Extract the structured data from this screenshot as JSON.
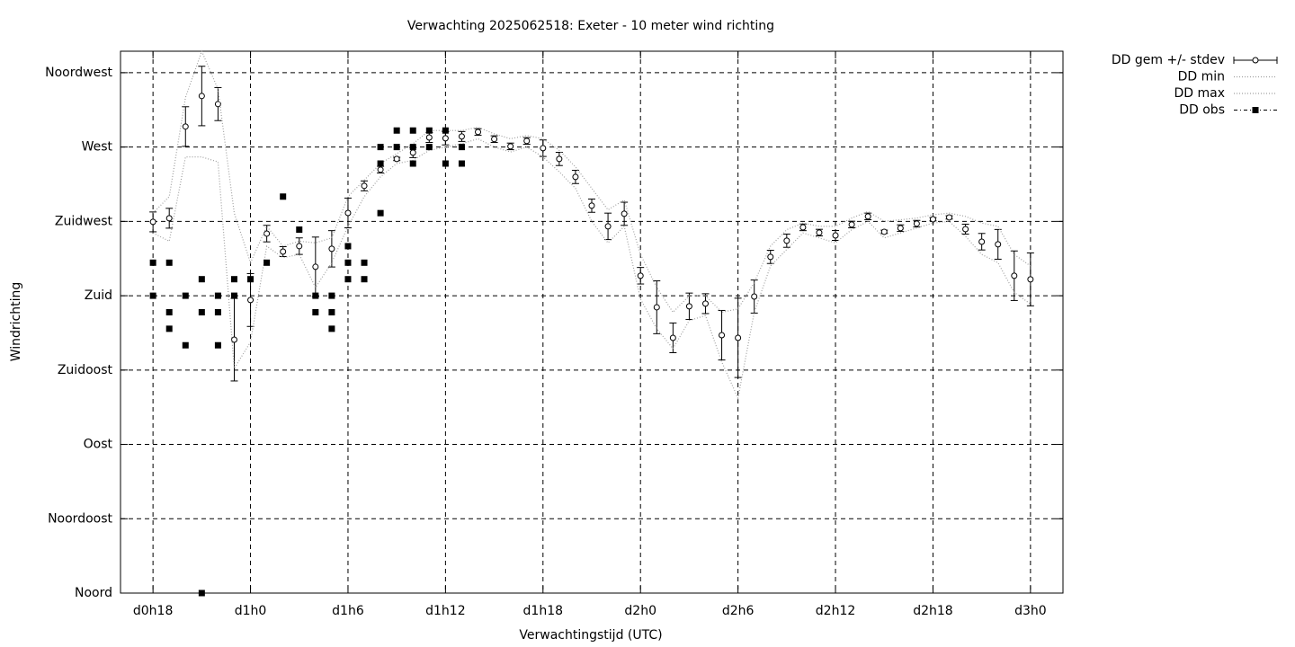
{
  "chart_data": {
    "type": "line",
    "title": "Verwachting 2025062518: Exeter - 10 meter wind richting",
    "xlabel": "Verwachtingstijd (UTC)",
    "ylabel": "Windrichting",
    "xlim": [
      16,
      74
    ],
    "ylim": [
      0,
      328
    ],
    "grid": true,
    "legend": "outside-top-right",
    "xticks": [
      {
        "value": 18,
        "label": "d0h18"
      },
      {
        "value": 24,
        "label": "d1h0"
      },
      {
        "value": 30,
        "label": "d1h6"
      },
      {
        "value": 36,
        "label": "d1h12"
      },
      {
        "value": 42,
        "label": "d1h18"
      },
      {
        "value": 48,
        "label": "d2h0"
      },
      {
        "value": 54,
        "label": "d2h6"
      },
      {
        "value": 60,
        "label": "d2h12"
      },
      {
        "value": 66,
        "label": "d2h18"
      },
      {
        "value": 72,
        "label": "d3h0"
      }
    ],
    "yticks": [
      {
        "value": 0,
        "label": "Noord"
      },
      {
        "value": 45,
        "label": "Noordoost"
      },
      {
        "value": 90,
        "label": "Oost"
      },
      {
        "value": 135,
        "label": "Zuidoost"
      },
      {
        "value": 180,
        "label": "Zuid"
      },
      {
        "value": 225,
        "label": "Zuidwest"
      },
      {
        "value": 270,
        "label": "West"
      },
      {
        "value": 315,
        "label": "Noordwest"
      }
    ],
    "x": [
      18,
      19,
      20,
      21,
      22,
      23,
      24,
      25,
      26,
      27,
      28,
      29,
      30,
      31,
      32,
      33,
      34,
      35,
      36,
      37,
      38,
      39,
      40,
      41,
      42,
      43,
      44,
      45,
      46,
      47,
      48,
      49,
      50,
      51,
      52,
      53,
      54,
      55,
      56,
      57,
      58,
      59,
      60,
      61,
      62,
      63,
      64,
      65,
      66,
      67,
      68,
      69,
      70,
      71,
      72
    ],
    "series": [
      {
        "name": "DD gem +/- stdev",
        "style": "errorbars",
        "color": "#000000",
        "values": [
          224.7,
          226.9,
          282.4,
          300.9,
          296.0,
          153.4,
          177.4,
          217.6,
          206.7,
          210.0,
          197.5,
          208.4,
          230.1,
          246.5,
          256.3,
          262.8,
          266.6,
          275.8,
          275.3,
          276.4,
          279.1,
          274.8,
          270.4,
          273.7,
          269.3,
          262.8,
          251.9,
          234.5,
          222.0,
          229.6,
          192.1,
          173.0,
          154.5,
          173.6,
          175.2,
          156.1,
          154.5,
          179.5,
          203.5,
          213.3,
          221.4,
          218.2,
          216.5,
          223.1,
          228.0,
          218.7,
          220.9,
          223.6,
          226.3,
          227.4,
          220.3,
          212.7,
          211.1,
          192.1,
          189.9
        ],
        "errors": [
          6,
          6,
          12,
          18,
          10,
          25,
          16,
          5,
          3,
          5,
          18,
          11,
          9,
          3,
          2,
          1,
          3,
          3,
          4,
          3,
          2,
          2,
          2,
          2,
          5,
          4,
          4,
          4,
          8,
          7,
          5,
          16,
          9,
          8,
          6,
          15,
          24,
          10,
          4,
          4,
          2,
          2,
          3,
          2,
          2,
          1,
          2,
          2,
          1,
          1,
          3,
          5,
          9,
          15,
          16
        ]
      },
      {
        "name": "DD min",
        "style": "dotted",
        "color": "#a0a0a0",
        "values": [
          218,
          213,
          264,
          264,
          261,
          136,
          152,
          210,
          203,
          205,
          185,
          200,
          222,
          240,
          252,
          260,
          262,
          268,
          270,
          272,
          275,
          270,
          267,
          270,
          264,
          255,
          245,
          225,
          212,
          222,
          178,
          160,
          148,
          165,
          168,
          140,
          118,
          170,
          198,
          208,
          218,
          215,
          212,
          220,
          225,
          215,
          218,
          221,
          224,
          225,
          216,
          205,
          200,
          182,
          175
        ]
      },
      {
        "name": "DD max",
        "style": "dotted",
        "color": "#a0a0a0",
        "values": [
          230,
          240,
          300,
          328,
          305,
          230,
          200,
          222,
          210,
          213,
          212,
          215,
          240,
          250,
          260,
          266,
          272,
          280,
          280,
          280,
          282,
          278,
          275,
          277,
          275,
          268,
          258,
          245,
          232,
          238,
          205,
          185,
          170,
          180,
          180,
          170,
          172,
          188,
          210,
          220,
          224,
          222,
          222,
          227,
          231,
          225,
          226,
          227,
          229,
          230,
          228,
          224,
          222,
          205,
          198
        ]
      },
      {
        "name": "DD obs",
        "style": "points",
        "color": "#000000",
        "x": [
          18,
          18,
          19,
          19,
          19,
          20,
          20,
          21,
          21,
          21,
          22,
          22,
          22,
          23,
          23,
          24,
          25,
          26,
          27,
          28,
          28,
          29,
          29,
          29,
          30,
          30,
          30,
          31,
          31,
          32,
          32,
          32,
          33,
          33,
          34,
          34,
          34,
          35,
          35,
          36,
          36,
          37,
          37
        ],
        "values": [
          200,
          180,
          200,
          170,
          160,
          180,
          150,
          190,
          170,
          0,
          180,
          170,
          150,
          190,
          180,
          190,
          200,
          240,
          220,
          180,
          170,
          180,
          170,
          160,
          210,
          200,
          190,
          200,
          190,
          230,
          260,
          270,
          280,
          270,
          280,
          270,
          260,
          280,
          270,
          280,
          260,
          270,
          260
        ]
      }
    ]
  }
}
